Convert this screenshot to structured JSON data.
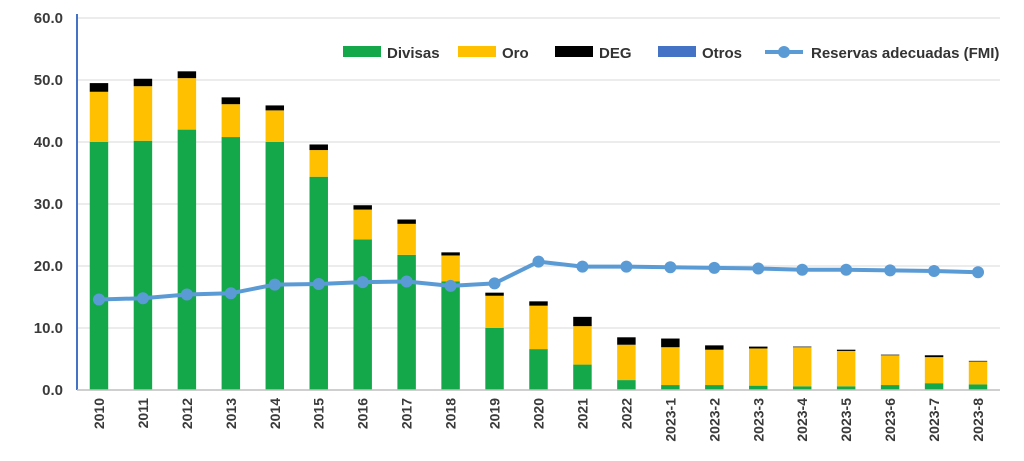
{
  "chart_data": {
    "type": "bar",
    "stacked": true,
    "title": "",
    "xlabel": "",
    "ylabel": "",
    "ylim": [
      0,
      60
    ],
    "yticks": [
      "0.0",
      "10.0",
      "20.0",
      "30.0",
      "40.0",
      "50.0",
      "60.0"
    ],
    "grid": true,
    "legend_position": "top-right",
    "categories": [
      "2010",
      "2011",
      "2012",
      "2013",
      "2014",
      "2015",
      "2016",
      "2017",
      "2018",
      "2019",
      "2020",
      "2021",
      "2022",
      "2023-1",
      "2023-2",
      "2023-3",
      "2023-4",
      "2023-5",
      "2023-6",
      "2023-7",
      "2023-8"
    ],
    "series": [
      {
        "name": "Divisas",
        "color": "#14a84a",
        "values": [
          40.0,
          40.2,
          42.0,
          40.8,
          40.0,
          34.4,
          24.3,
          21.8,
          17.5,
          10.0,
          6.6,
          4.1,
          1.6,
          0.8,
          0.8,
          0.7,
          0.6,
          0.6,
          0.8,
          1.1,
          0.9
        ]
      },
      {
        "name": "Oro",
        "color": "#ffc000",
        "values": [
          8.1,
          8.8,
          8.3,
          5.3,
          5.1,
          4.3,
          4.8,
          5.0,
          4.2,
          5.2,
          7.0,
          6.2,
          5.7,
          6.1,
          5.7,
          6.0,
          6.3,
          5.7,
          4.8,
          4.2,
          3.7
        ]
      },
      {
        "name": "DEG",
        "color": "#000000",
        "values": [
          1.4,
          1.2,
          1.1,
          1.1,
          0.8,
          0.9,
          0.7,
          0.7,
          0.5,
          0.5,
          0.7,
          1.5,
          1.2,
          1.4,
          0.7,
          0.3,
          0.1,
          0.2,
          0.1,
          0.3,
          0.1
        ]
      },
      {
        "name": "Otros",
        "color": "#4472c4",
        "values": [
          0,
          0,
          0,
          0,
          0,
          0,
          0,
          0,
          0,
          0,
          0,
          0,
          0,
          0,
          0,
          0,
          0,
          0,
          0,
          0,
          0
        ]
      }
    ],
    "line_series": {
      "name": "Reservas adecuadas (FMI)",
      "color": "#5b9bd5",
      "values": [
        14.6,
        14.8,
        15.4,
        15.6,
        17.0,
        17.1,
        17.4,
        17.5,
        16.8,
        17.2,
        20.7,
        19.9,
        19.9,
        19.8,
        19.7,
        19.6,
        19.4,
        19.4,
        19.3,
        19.2,
        19.0
      ]
    }
  }
}
